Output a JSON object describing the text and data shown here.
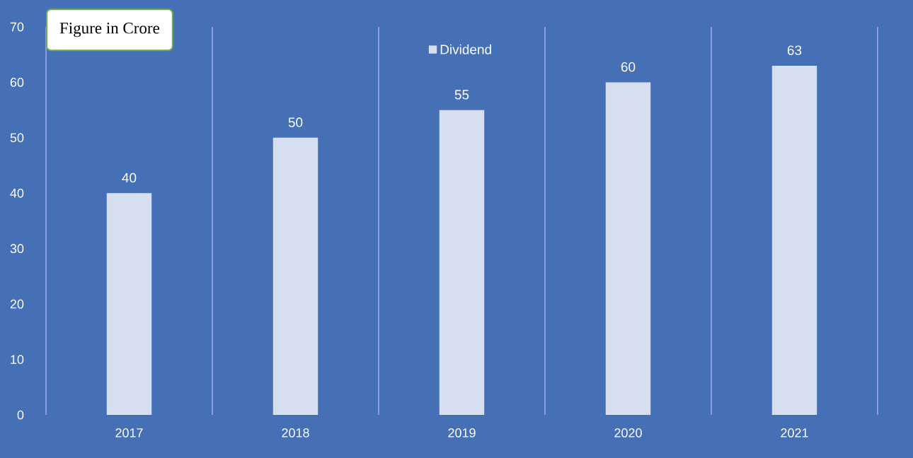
{
  "chart_data": {
    "type": "bar",
    "categories": [
      "2017",
      "2018",
      "2019",
      "2020",
      "2021"
    ],
    "series": [
      {
        "name": "Dividend",
        "color": "#d5dff0",
        "values": [
          40,
          50,
          55,
          60,
          63
        ]
      }
    ],
    "ylim": [
      0,
      70
    ],
    "yticks": [
      0,
      10,
      20,
      30,
      40,
      50,
      60,
      70
    ],
    "grid": "x",
    "legend": "top",
    "data_labels": true,
    "annotations": [
      "Figure in Crore"
    ]
  }
}
